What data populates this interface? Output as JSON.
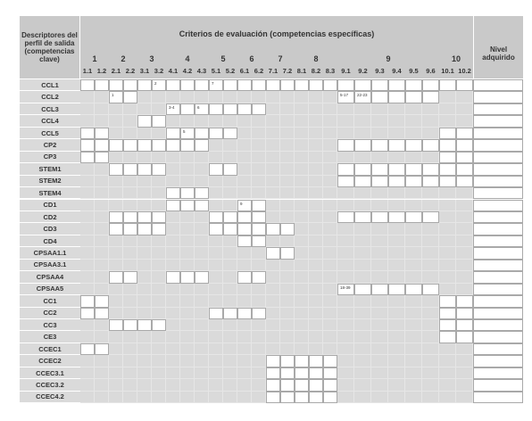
{
  "table": {
    "corner": "Descriptores del perfil de salida (competencias clave)",
    "criteria_title": "Criterios de evaluación (competencias específicas)",
    "level_header": "Nivel adquirido",
    "groups": [
      {
        "label": "1",
        "subs": [
          "1.1",
          "1.2"
        ]
      },
      {
        "label": "2",
        "subs": [
          "2.1",
          "2.2"
        ]
      },
      {
        "label": "3",
        "subs": [
          "3.1",
          "3.2"
        ]
      },
      {
        "label": "4",
        "subs": [
          "4.1",
          "4.2",
          "4.3"
        ]
      },
      {
        "label": "5",
        "subs": [
          "5.1",
          "5.2"
        ]
      },
      {
        "label": "6",
        "subs": [
          "6.1",
          "6.2"
        ]
      },
      {
        "label": "7",
        "subs": [
          "7.1",
          "7.2"
        ]
      },
      {
        "label": "8",
        "subs": [
          "8.1",
          "8.2",
          "8.3"
        ]
      },
      {
        "label": "9",
        "subs": [
          "9.1",
          "9.2",
          "9.3",
          "9.4",
          "9.5",
          "9.6"
        ]
      },
      {
        "label": "10",
        "subs": [
          "10.1",
          "10.2"
        ]
      }
    ],
    "rows": [
      {
        "label": "CCL1",
        "cells": [
          true,
          true,
          true,
          true,
          true,
          "2",
          true,
          true,
          true,
          "7",
          true,
          true,
          true,
          true,
          true,
          true,
          true,
          true,
          true,
          true,
          true,
          true,
          true,
          true,
          true,
          true
        ]
      },
      {
        "label": "CCL2",
        "cells": [
          false,
          false,
          "1",
          true,
          false,
          false,
          false,
          false,
          false,
          false,
          false,
          false,
          false,
          false,
          false,
          false,
          false,
          false,
          "5-17",
          "22-23",
          true,
          true,
          true,
          true,
          false,
          false
        ]
      },
      {
        "label": "CCL3",
        "cells": [
          false,
          false,
          false,
          false,
          false,
          false,
          "3-4",
          true,
          "6",
          true,
          true,
          true,
          true,
          false,
          false,
          false,
          false,
          false,
          false,
          false,
          false,
          false,
          false,
          false,
          false,
          false
        ]
      },
      {
        "label": "CCL4",
        "cells": [
          false,
          false,
          false,
          false,
          true,
          true,
          false,
          false,
          false,
          false,
          false,
          false,
          false,
          false,
          false,
          false,
          false,
          false,
          false,
          false,
          false,
          false,
          false,
          false,
          false,
          false
        ]
      },
      {
        "label": "CCL5",
        "cells": [
          true,
          true,
          false,
          false,
          false,
          false,
          true,
          "5",
          true,
          true,
          true,
          false,
          false,
          false,
          false,
          false,
          false,
          false,
          false,
          false,
          false,
          false,
          false,
          false,
          true,
          true
        ]
      },
      {
        "label": "CP2",
        "cells": [
          true,
          true,
          true,
          true,
          true,
          true,
          true,
          true,
          true,
          false,
          false,
          false,
          false,
          false,
          false,
          false,
          false,
          false,
          true,
          true,
          true,
          true,
          true,
          true,
          true,
          true
        ]
      },
      {
        "label": "CP3",
        "cells": [
          true,
          true,
          false,
          false,
          false,
          false,
          false,
          false,
          false,
          false,
          false,
          false,
          false,
          false,
          false,
          false,
          false,
          false,
          false,
          false,
          false,
          false,
          false,
          false,
          true,
          true
        ]
      },
      {
        "label": "STEM1",
        "cells": [
          false,
          false,
          true,
          true,
          true,
          true,
          false,
          false,
          false,
          true,
          true,
          false,
          false,
          false,
          false,
          false,
          false,
          false,
          true,
          true,
          true,
          true,
          true,
          true,
          true,
          true
        ]
      },
      {
        "label": "STEM2",
        "cells": [
          false,
          false,
          false,
          false,
          false,
          false,
          false,
          false,
          false,
          false,
          false,
          false,
          false,
          false,
          false,
          false,
          false,
          false,
          true,
          true,
          true,
          true,
          true,
          true,
          true,
          true
        ]
      },
      {
        "label": "STEM4",
        "cells": [
          false,
          false,
          false,
          false,
          false,
          false,
          true,
          true,
          true,
          false,
          false,
          false,
          false,
          false,
          false,
          false,
          false,
          false,
          false,
          false,
          false,
          false,
          false,
          false,
          false,
          false
        ]
      },
      {
        "label": "CD1",
        "cells": [
          false,
          false,
          false,
          false,
          false,
          false,
          true,
          true,
          true,
          false,
          false,
          "9",
          true,
          false,
          false,
          false,
          false,
          false,
          false,
          false,
          false,
          false,
          false,
          false,
          false,
          false
        ]
      },
      {
        "label": "CD2",
        "cells": [
          false,
          false,
          true,
          true,
          true,
          true,
          false,
          false,
          false,
          true,
          true,
          true,
          true,
          false,
          false,
          false,
          false,
          false,
          true,
          true,
          true,
          true,
          true,
          true,
          false,
          false
        ]
      },
      {
        "label": "CD3",
        "cells": [
          false,
          false,
          true,
          true,
          true,
          true,
          false,
          false,
          false,
          true,
          true,
          true,
          true,
          true,
          true,
          false,
          false,
          false,
          false,
          false,
          false,
          false,
          false,
          false,
          false,
          false
        ]
      },
      {
        "label": "CD4",
        "cells": [
          false,
          false,
          false,
          false,
          false,
          false,
          false,
          false,
          false,
          false,
          false,
          true,
          true,
          false,
          false,
          false,
          false,
          false,
          false,
          false,
          false,
          false,
          false,
          false,
          false,
          false
        ]
      },
      {
        "label": "CPSAA1.1",
        "cells": [
          false,
          false,
          false,
          false,
          false,
          false,
          false,
          false,
          false,
          false,
          false,
          false,
          false,
          true,
          true,
          false,
          false,
          false,
          false,
          false,
          false,
          false,
          false,
          false,
          false,
          false
        ]
      },
      {
        "label": "CPSAA3.1",
        "cells": [
          false,
          false,
          false,
          false,
          false,
          false,
          false,
          false,
          false,
          false,
          false,
          false,
          false,
          false,
          false,
          false,
          false,
          false,
          false,
          false,
          false,
          false,
          false,
          false,
          false,
          false
        ]
      },
      {
        "label": "CPSAA4",
        "cells": [
          false,
          false,
          true,
          true,
          false,
          false,
          true,
          true,
          true,
          false,
          false,
          true,
          true,
          false,
          false,
          false,
          false,
          false,
          false,
          false,
          false,
          false,
          false,
          false,
          false,
          false
        ]
      },
      {
        "label": "CPSAA5",
        "cells": [
          false,
          false,
          false,
          false,
          false,
          false,
          false,
          false,
          false,
          false,
          false,
          false,
          false,
          false,
          false,
          false,
          false,
          false,
          "18-39",
          true,
          true,
          true,
          true,
          true,
          false,
          false
        ]
      },
      {
        "label": "CC1",
        "cells": [
          true,
          true,
          false,
          false,
          false,
          false,
          false,
          false,
          false,
          false,
          false,
          false,
          false,
          false,
          false,
          false,
          false,
          false,
          false,
          false,
          false,
          false,
          false,
          false,
          true,
          true
        ]
      },
      {
        "label": "CC2",
        "cells": [
          true,
          true,
          false,
          false,
          false,
          false,
          false,
          false,
          false,
          true,
          true,
          true,
          true,
          false,
          false,
          false,
          false,
          false,
          false,
          false,
          false,
          false,
          false,
          false,
          true,
          true
        ]
      },
      {
        "label": "CC3",
        "cells": [
          false,
          false,
          true,
          true,
          true,
          true,
          false,
          false,
          false,
          false,
          false,
          false,
          false,
          false,
          false,
          false,
          false,
          false,
          false,
          false,
          false,
          false,
          false,
          false,
          true,
          true
        ]
      },
      {
        "label": "CE3",
        "cells": [
          false,
          false,
          false,
          false,
          false,
          false,
          false,
          false,
          false,
          false,
          false,
          false,
          false,
          false,
          false,
          false,
          false,
          false,
          false,
          false,
          false,
          false,
          false,
          false,
          true,
          true
        ]
      },
      {
        "label": "CCEC1",
        "cells": [
          true,
          true,
          false,
          false,
          false,
          false,
          false,
          false,
          false,
          false,
          false,
          false,
          false,
          false,
          false,
          false,
          false,
          false,
          false,
          false,
          false,
          false,
          false,
          false,
          false,
          false
        ]
      },
      {
        "label": "CCEC2",
        "cells": [
          false,
          false,
          false,
          false,
          false,
          false,
          false,
          false,
          false,
          false,
          false,
          false,
          false,
          true,
          true,
          true,
          true,
          true,
          false,
          false,
          false,
          false,
          false,
          false,
          false,
          false
        ]
      },
      {
        "label": "CCEC3.1",
        "cells": [
          false,
          false,
          false,
          false,
          false,
          false,
          false,
          false,
          false,
          false,
          false,
          false,
          false,
          true,
          true,
          true,
          true,
          true,
          false,
          false,
          false,
          false,
          false,
          false,
          false,
          false
        ]
      },
      {
        "label": "CCEC3.2",
        "cells": [
          false,
          false,
          false,
          false,
          false,
          false,
          false,
          false,
          false,
          false,
          false,
          false,
          false,
          true,
          true,
          true,
          true,
          true,
          false,
          false,
          false,
          false,
          false,
          false,
          false,
          false
        ]
      },
      {
        "label": "CCEC4.2",
        "cells": [
          false,
          false,
          false,
          false,
          false,
          false,
          false,
          false,
          false,
          false,
          false,
          false,
          false,
          true,
          true,
          true,
          true,
          true,
          false,
          false,
          false,
          false,
          false,
          false,
          false,
          false
        ]
      }
    ]
  }
}
